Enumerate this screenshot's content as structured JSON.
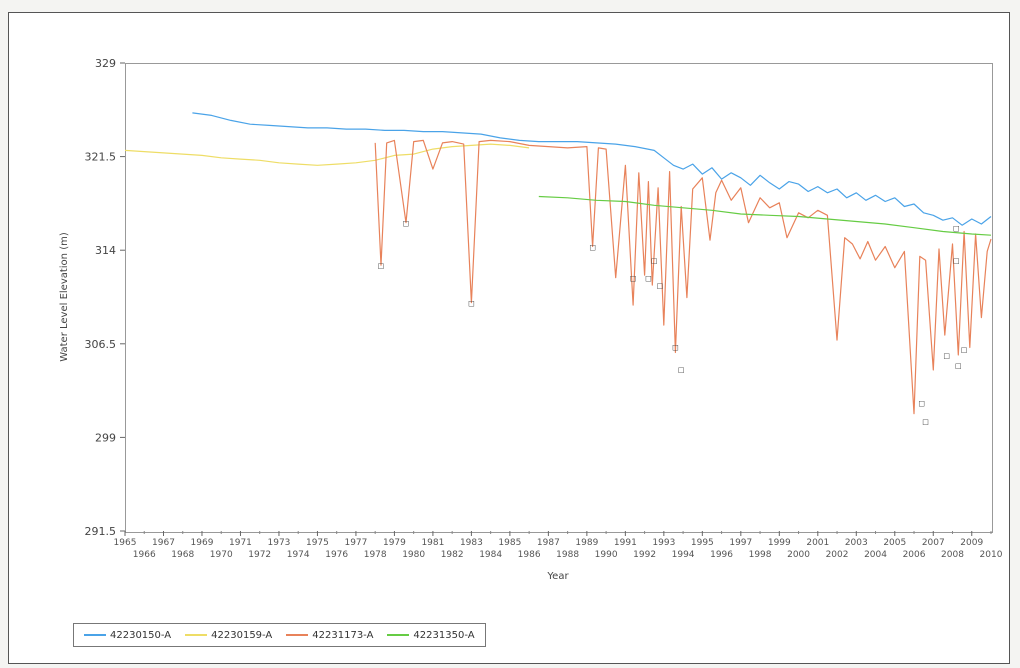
{
  "chart_data": {
    "type": "line",
    "title": "",
    "xlabel": "Year",
    "ylabel": "Water Level Elevation (m)",
    "xlim": [
      1965,
      2010
    ],
    "ylim": [
      291.5,
      329
    ],
    "y_ticks": [
      "329",
      "321.5",
      "314",
      "306.5",
      "299",
      "291.5"
    ],
    "x_ticks_upper": [
      "1965",
      "1967",
      "1969",
      "1971",
      "1973",
      "1975",
      "1977",
      "1979",
      "1981",
      "1983",
      "1985",
      "1987",
      "1989",
      "1991",
      "1993",
      "1995",
      "1997",
      "1999",
      "2001",
      "2003",
      "2005",
      "2007",
      "2009"
    ],
    "x_ticks_lower": [
      "1966",
      "1968",
      "1970",
      "1972",
      "1974",
      "1976",
      "1978",
      "1980",
      "1982",
      "1984",
      "1986",
      "1988",
      "1990",
      "1992",
      "1994",
      "1996",
      "1998",
      "2000",
      "2002",
      "2004",
      "2006",
      "2008",
      "2010"
    ],
    "grid": false,
    "legend_position": "bottom-left",
    "series": [
      {
        "name": "42230150-A",
        "color": "#4aa3e8",
        "x": [
          1968.5,
          1969.5,
          1970.5,
          1971.5,
          1972.5,
          1973.5,
          1974.5,
          1975.5,
          1976.5,
          1977.5,
          1978.5,
          1979.5,
          1980.5,
          1981.5,
          1982.5,
          1983.5,
          1984.5,
          1985.5,
          1986.5,
          1987.5,
          1988.5,
          1989.5,
          1990.5,
          1991.5,
          1992.5,
          1993.0,
          1993.5,
          1994.0,
          1994.5,
          1995.0,
          1995.5,
          1996.0,
          1996.5,
          1997.0,
          1997.5,
          1998.0,
          1998.5,
          1999.0,
          1999.5,
          2000.0,
          2000.5,
          2001.0,
          2001.5,
          2002.0,
          2002.5,
          2003.0,
          2003.5,
          2004.0,
          2004.5,
          2005.0,
          2005.5,
          2006.0,
          2006.5,
          2007.0,
          2007.5,
          2008.0,
          2008.5,
          2009.0,
          2009.5,
          2010.0
        ],
        "values": [
          325.0,
          324.8,
          324.4,
          324.1,
          324.0,
          323.9,
          323.8,
          323.8,
          323.7,
          323.7,
          323.6,
          323.6,
          323.5,
          323.5,
          323.4,
          323.3,
          323.0,
          322.8,
          322.7,
          322.7,
          322.7,
          322.6,
          322.5,
          322.3,
          322.0,
          321.4,
          320.8,
          320.5,
          320.9,
          320.1,
          320.6,
          319.7,
          320.2,
          319.8,
          319.2,
          320.0,
          319.4,
          318.9,
          319.5,
          319.3,
          318.7,
          319.1,
          318.6,
          318.9,
          318.2,
          318.6,
          318.0,
          318.4,
          317.9,
          318.2,
          317.5,
          317.7,
          317.0,
          316.8,
          316.4,
          316.6,
          316.0,
          316.5,
          316.1,
          316.7
        ]
      },
      {
        "name": "42230159-A",
        "color": "#eedd66",
        "x": [
          1965.0,
          1966.0,
          1967.0,
          1968.0,
          1969.0,
          1970.0,
          1971.0,
          1972.0,
          1973.0,
          1974.0,
          1975.0,
          1976.0,
          1977.0,
          1978.0,
          1979.0,
          1980.0,
          1981.0,
          1982.0,
          1983.0,
          1984.0,
          1985.0,
          1986.0
        ],
        "values": [
          322.0,
          321.9,
          321.8,
          321.7,
          321.6,
          321.4,
          321.3,
          321.2,
          321.0,
          320.9,
          320.8,
          320.9,
          321.0,
          321.2,
          321.6,
          321.7,
          322.1,
          322.3,
          322.4,
          322.5,
          322.4,
          322.2
        ]
      },
      {
        "name": "42231173-A",
        "color": "#e8825a",
        "x": [
          1978.0,
          1978.3,
          1978.6,
          1979.0,
          1979.6,
          1980.0,
          1980.5,
          1981.0,
          1981.5,
          1982.0,
          1982.6,
          1983.0,
          1983.4,
          1984.0,
          1985.0,
          1986.0,
          1987.0,
          1988.0,
          1989.0,
          1989.3,
          1989.6,
          1990.0,
          1990.5,
          1991.0,
          1991.4,
          1991.7,
          1992.0,
          1992.2,
          1992.4,
          1992.7,
          1993.0,
          1993.3,
          1993.6,
          1993.9,
          1994.2,
          1994.5,
          1995.0,
          1995.4,
          1995.7,
          1996.0,
          1996.5,
          1997.0,
          1997.4,
          1998.0,
          1998.5,
          1999.0,
          1999.4,
          2000.0,
          2000.5,
          2001.0,
          2001.5,
          2002.0,
          2002.4,
          2002.8,
          2003.2,
          2003.6,
          2004.0,
          2004.5,
          2005.0,
          2005.5,
          2006.0,
          2006.3,
          2006.6,
          2007.0,
          2007.3,
          2007.6,
          2008.0,
          2008.3,
          2008.6,
          2008.9,
          2009.2,
          2009.5,
          2009.8,
          2010.0
        ],
        "values": [
          322.6,
          312.8,
          322.6,
          322.8,
          316.2,
          322.7,
          322.8,
          320.5,
          322.6,
          322.7,
          322.5,
          309.8,
          322.7,
          322.8,
          322.7,
          322.4,
          322.3,
          322.2,
          322.3,
          314.3,
          322.2,
          322.1,
          311.8,
          320.8,
          309.6,
          320.2,
          312.0,
          319.5,
          311.2,
          319.0,
          308.0,
          320.3,
          305.8,
          317.5,
          310.2,
          318.9,
          319.8,
          314.8,
          318.6,
          319.6,
          318.0,
          319.0,
          316.2,
          318.2,
          317.4,
          317.8,
          315.0,
          317.0,
          316.6,
          317.2,
          316.8,
          306.8,
          315.0,
          314.5,
          313.3,
          314.7,
          313.2,
          314.3,
          312.6,
          313.9,
          300.9,
          313.5,
          313.2,
          304.4,
          314.1,
          307.2,
          314.5,
          305.6,
          315.5,
          306.2,
          315.3,
          308.6,
          313.9,
          314.9
        ]
      },
      {
        "name": "42231350-A",
        "color": "#66cc44",
        "x": [
          1986.5,
          1988.0,
          1989.5,
          1991.0,
          1992.5,
          1994.0,
          1995.5,
          1997.0,
          1998.5,
          2000.0,
          2001.5,
          2003.0,
          2004.5,
          2006.0,
          2007.5,
          2009.0,
          2010.0
        ],
        "values": [
          318.3,
          318.2,
          318.0,
          317.9,
          317.6,
          317.4,
          317.2,
          316.9,
          316.8,
          316.7,
          316.5,
          316.3,
          316.1,
          315.8,
          315.5,
          315.3,
          315.2
        ]
      }
    ],
    "annotations": [
      {
        "x": 1978.3,
        "y": 312.8,
        "text": "□"
      },
      {
        "x": 1979.6,
        "y": 316.2,
        "text": "□"
      },
      {
        "x": 1983.0,
        "y": 309.8,
        "text": "□"
      },
      {
        "x": 1989.3,
        "y": 314.3,
        "text": "□"
      },
      {
        "x": 1991.4,
        "y": 311.8,
        "text": "□"
      },
      {
        "x": 1992.2,
        "y": 311.8,
        "text": "□"
      },
      {
        "x": 1992.5,
        "y": 313.2,
        "text": "□"
      },
      {
        "x": 1992.8,
        "y": 311.2,
        "text": "□"
      },
      {
        "x": 1993.6,
        "y": 306.3,
        "text": "□"
      },
      {
        "x": 1993.9,
        "y": 304.5,
        "text": "□"
      },
      {
        "x": 2006.4,
        "y": 301.8,
        "text": "□"
      },
      {
        "x": 2006.6,
        "y": 300.3,
        "text": "□"
      },
      {
        "x": 2007.7,
        "y": 305.6,
        "text": "□"
      },
      {
        "x": 2008.3,
        "y": 304.8,
        "text": "□"
      },
      {
        "x": 2008.6,
        "y": 306.1,
        "text": "□"
      },
      {
        "x": 2008.2,
        "y": 315.8,
        "text": "□"
      },
      {
        "x": 2008.2,
        "y": 313.2,
        "text": "□"
      }
    ]
  }
}
